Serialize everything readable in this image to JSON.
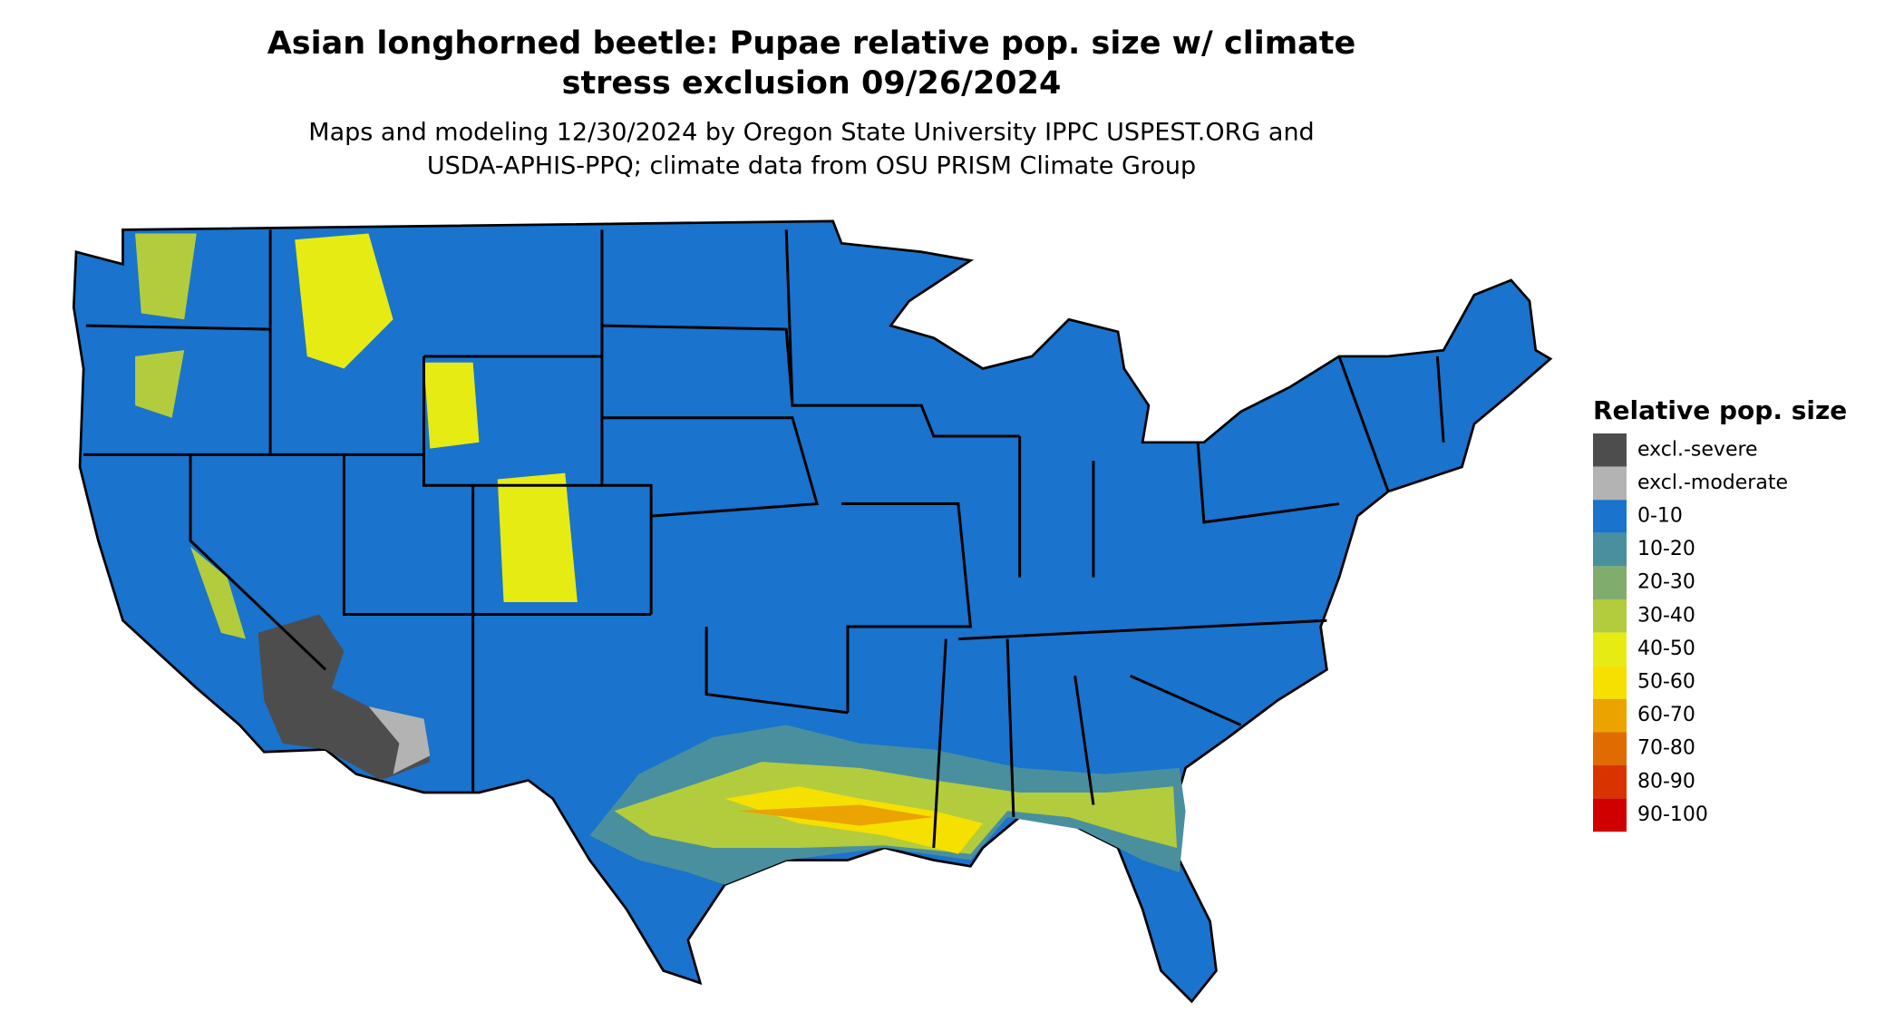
{
  "title": [
    "Asian longhorned beetle: Pupae relative pop. size w/ climate",
    "stress exclusion 09/26/2024"
  ],
  "subtitle": [
    "Maps and modeling 12/30/2024 by Oregon State University IPPC USPEST.ORG and",
    "USDA-APHIS-PPQ; climate data from OSU PRISM Climate Group"
  ],
  "legend": {
    "title": "Relative pop. size",
    "items": [
      {
        "label": "excl.-severe",
        "color": "#4d4d4d"
      },
      {
        "label": "excl.-moderate",
        "color": "#b3b3b3"
      },
      {
        "label": "0-10",
        "color": "#1a73cc"
      },
      {
        "label": "10-20",
        "color": "#4a8f9e"
      },
      {
        "label": "20-30",
        "color": "#80ad6e"
      },
      {
        "label": "30-40",
        "color": "#b3cc3d"
      },
      {
        "label": "40-50",
        "color": "#e6eb14"
      },
      {
        "label": "50-60",
        "color": "#f5e000"
      },
      {
        "label": "60-70",
        "color": "#eba300"
      },
      {
        "label": "70-80",
        "color": "#e06b00"
      },
      {
        "label": "80-90",
        "color": "#d93300"
      },
      {
        "label": "90-100",
        "color": "#d10000"
      }
    ]
  }
}
